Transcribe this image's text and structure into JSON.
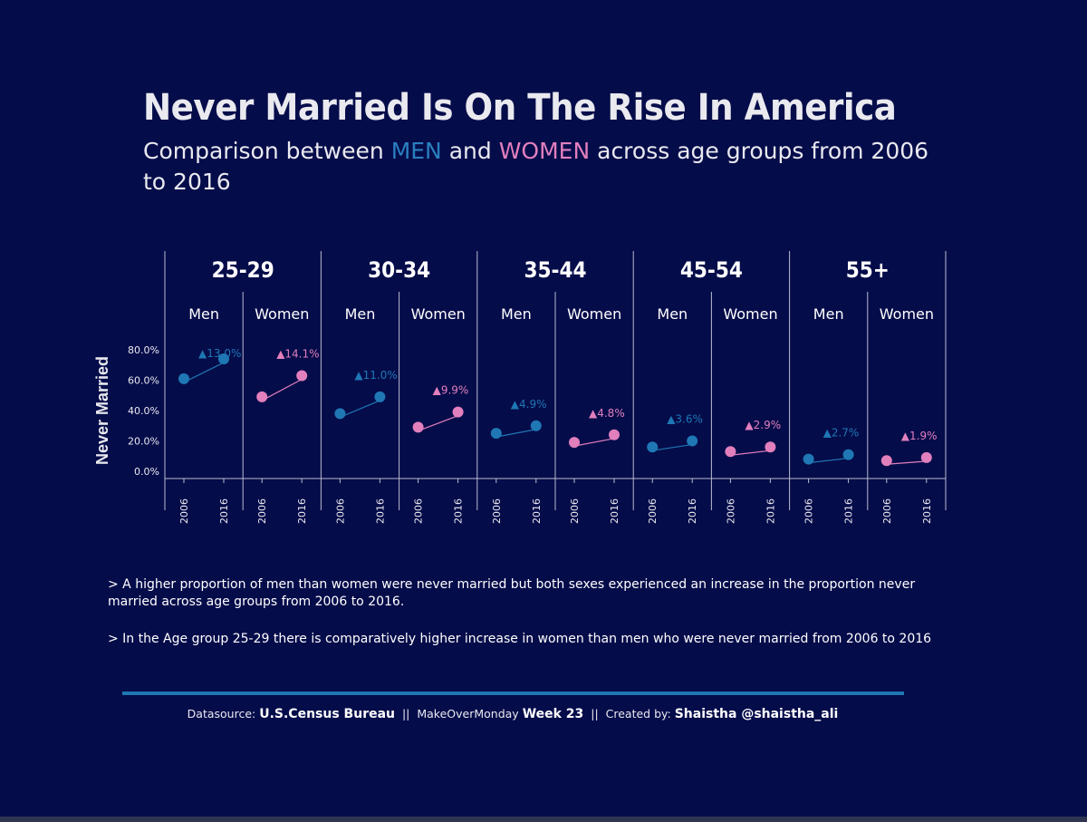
{
  "title": "Never Married Is On The Rise In America",
  "subtitle": {
    "prefix": "Comparison between ",
    "men": "MEN",
    "middle": " and ",
    "women": "WOMEN",
    "suffix": " across age groups from 2006 to 2016"
  },
  "notes": [
    "> A higher proportion of men than women were never married but both sexes experienced an increase in the proportion never married across age groups from 2006 to 2016.",
    "> In the Age group 25-29 there is comparatively higher increase in women than men who were never married from 2006 to 2016"
  ],
  "footer": {
    "source_label": "Datasource:",
    "source_value": "U.S.Census Bureau",
    "sep1": "||",
    "mom_label": "MakeOverMonday",
    "week_value": "Week  23",
    "sep2": "||",
    "created_label": "Created by:",
    "created_value": "Shaistha @shaistha_ali"
  },
  "colors": {
    "background": "#050c4a",
    "men": "#1f77b4",
    "women": "#e27fbd",
    "divider": "#b8bccf",
    "text": "#e9e9ef"
  },
  "chart_data": {
    "type": "scatter",
    "ylabel": "Never Married",
    "ylim": [
      0,
      0.85
    ],
    "yticks": [
      0.0,
      0.2,
      0.4,
      0.6,
      0.8
    ],
    "ytick_labels": [
      "0.0%",
      "20.0%",
      "40.0%",
      "60.0%",
      "80.0%"
    ],
    "x": [
      "2006",
      "2016"
    ],
    "groups": [
      {
        "age": "25-29",
        "panels": [
          {
            "sex": "Men",
            "values": [
              0.61,
              0.74
            ],
            "change": "▲13.0%"
          },
          {
            "sex": "Women",
            "values": [
              0.49,
              0.63
            ],
            "change": "▲14.1%"
          }
        ]
      },
      {
        "age": "30-34",
        "panels": [
          {
            "sex": "Men",
            "values": [
              0.38,
              0.49
            ],
            "change": "▲11.0%"
          },
          {
            "sex": "Women",
            "values": [
              0.29,
              0.39
            ],
            "change": "▲9.9%"
          }
        ]
      },
      {
        "age": "35-44",
        "panels": [
          {
            "sex": "Men",
            "values": [
              0.25,
              0.3
            ],
            "change": "▲4.9%"
          },
          {
            "sex": "Women",
            "values": [
              0.19,
              0.24
            ],
            "change": "▲4.8%"
          }
        ]
      },
      {
        "age": "45-54",
        "panels": [
          {
            "sex": "Men",
            "values": [
              0.16,
              0.2
            ],
            "change": "▲3.6%"
          },
          {
            "sex": "Women",
            "values": [
              0.13,
              0.16
            ],
            "change": "▲2.9%"
          }
        ]
      },
      {
        "age": "55+",
        "panels": [
          {
            "sex": "Men",
            "values": [
              0.08,
              0.11
            ],
            "change": "▲2.7%"
          },
          {
            "sex": "Women",
            "values": [
              0.07,
              0.09
            ],
            "change": "▲1.9%"
          }
        ]
      }
    ]
  }
}
